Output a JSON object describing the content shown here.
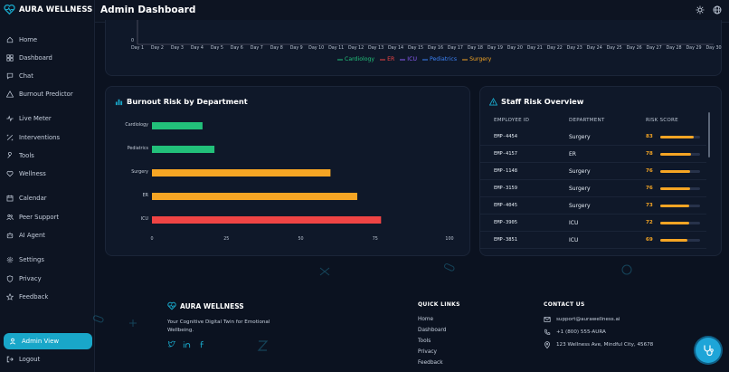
{
  "app": {
    "brand": "AURA WELLNESS",
    "page_title": "Admin Dashboard"
  },
  "colors": {
    "accent": "#19a7c9",
    "cardiology": "#22c07a",
    "er": "#ef4444",
    "icu": "#8b5cf6",
    "pediatrics": "#3b82f6",
    "surgery": "#f5a524"
  },
  "sidebar": {
    "items": [
      {
        "label": "Home",
        "icon": "home-icon"
      },
      {
        "label": "Dashboard",
        "icon": "dashboard-icon"
      },
      {
        "label": "Chat",
        "icon": "chat-icon"
      },
      {
        "label": "Burnout Predictor",
        "icon": "warning-icon"
      },
      {
        "label": "Live Meter",
        "icon": "pulse-icon"
      },
      {
        "label": "Interventions",
        "icon": "intervention-icon"
      },
      {
        "label": "Tools",
        "icon": "wrench-icon"
      },
      {
        "label": "Wellness",
        "icon": "heart-icon"
      },
      {
        "label": "Calendar",
        "icon": "calendar-icon"
      },
      {
        "label": "Peer Support",
        "icon": "people-icon"
      },
      {
        "label": "AI Agent",
        "icon": "robot-icon"
      },
      {
        "label": "Settings",
        "icon": "gear-icon"
      },
      {
        "label": "Privacy",
        "icon": "shield-icon"
      },
      {
        "label": "Feedback",
        "icon": "star-icon"
      }
    ],
    "active": "Admin View",
    "logout": "Logout"
  },
  "trend_chart": {
    "y_tick": "0",
    "days": [
      "Day 1",
      "Day 2",
      "Day 3",
      "Day 4",
      "Day 5",
      "Day 6",
      "Day 7",
      "Day 8",
      "Day 9",
      "Day 10",
      "Day 11",
      "Day 12",
      "Day 13",
      "Day 14",
      "Day 15",
      "Day 16",
      "Day 17",
      "Day 18",
      "Day 19",
      "Day 20",
      "Day 21",
      "Day 22",
      "Day 23",
      "Day 24",
      "Day 25",
      "Day 26",
      "Day 27",
      "Day 28",
      "Day 29",
      "Day 30"
    ],
    "legend": [
      "Cardiology",
      "ER",
      "ICU",
      "Pediatrics",
      "Surgery"
    ]
  },
  "burnout": {
    "title": "Burnout Risk by Department"
  },
  "chart_data": {
    "type": "bar",
    "orientation": "horizontal",
    "title": "Burnout Risk by Department",
    "categories": [
      "Cardiology",
      "Pediatrics",
      "Surgery",
      "ER",
      "ICU"
    ],
    "values": [
      17,
      21,
      60,
      69,
      77
    ],
    "colors": [
      "#22c07a",
      "#22c07a",
      "#f5a524",
      "#f5a524",
      "#ef4444"
    ],
    "xlim": [
      0,
      100
    ],
    "xticks": [
      "0",
      "25",
      "50",
      "75",
      "100"
    ]
  },
  "staff": {
    "title": "Staff Risk Overview",
    "headers": [
      "EMPLOYEE ID",
      "DEPARTMENT",
      "RISK SCORE"
    ],
    "rows": [
      {
        "id": "EMP-4454",
        "dept": "Surgery",
        "score": "83",
        "fraction": 0.83
      },
      {
        "id": "EMP-4157",
        "dept": "ER",
        "score": "78",
        "fraction": 0.78
      },
      {
        "id": "EMP-1148",
        "dept": "Surgery",
        "score": "76",
        "fraction": 0.76
      },
      {
        "id": "EMP-3159",
        "dept": "Surgery",
        "score": "76",
        "fraction": 0.76
      },
      {
        "id": "EMP-4045",
        "dept": "Surgery",
        "score": "73",
        "fraction": 0.73
      },
      {
        "id": "EMP-3905",
        "dept": "ICU",
        "score": "72",
        "fraction": 0.72
      },
      {
        "id": "EMP-3851",
        "dept": "ICU",
        "score": "69",
        "fraction": 0.69
      }
    ]
  },
  "footer": {
    "brand": "AURA WELLNESS",
    "desc": "Your Cognitive Digital Twin for Emotional Wellbeing.",
    "quick_title": "QUICK LINKS",
    "links": [
      "Home",
      "Dashboard",
      "Tools",
      "Privacy",
      "Feedback"
    ],
    "contact_title": "CONTACT US",
    "email": "support@aurawellness.ai",
    "phone": "+1 (800) 555-AURA",
    "address": "123 Wellness Ave, Mindful City, 45678"
  }
}
